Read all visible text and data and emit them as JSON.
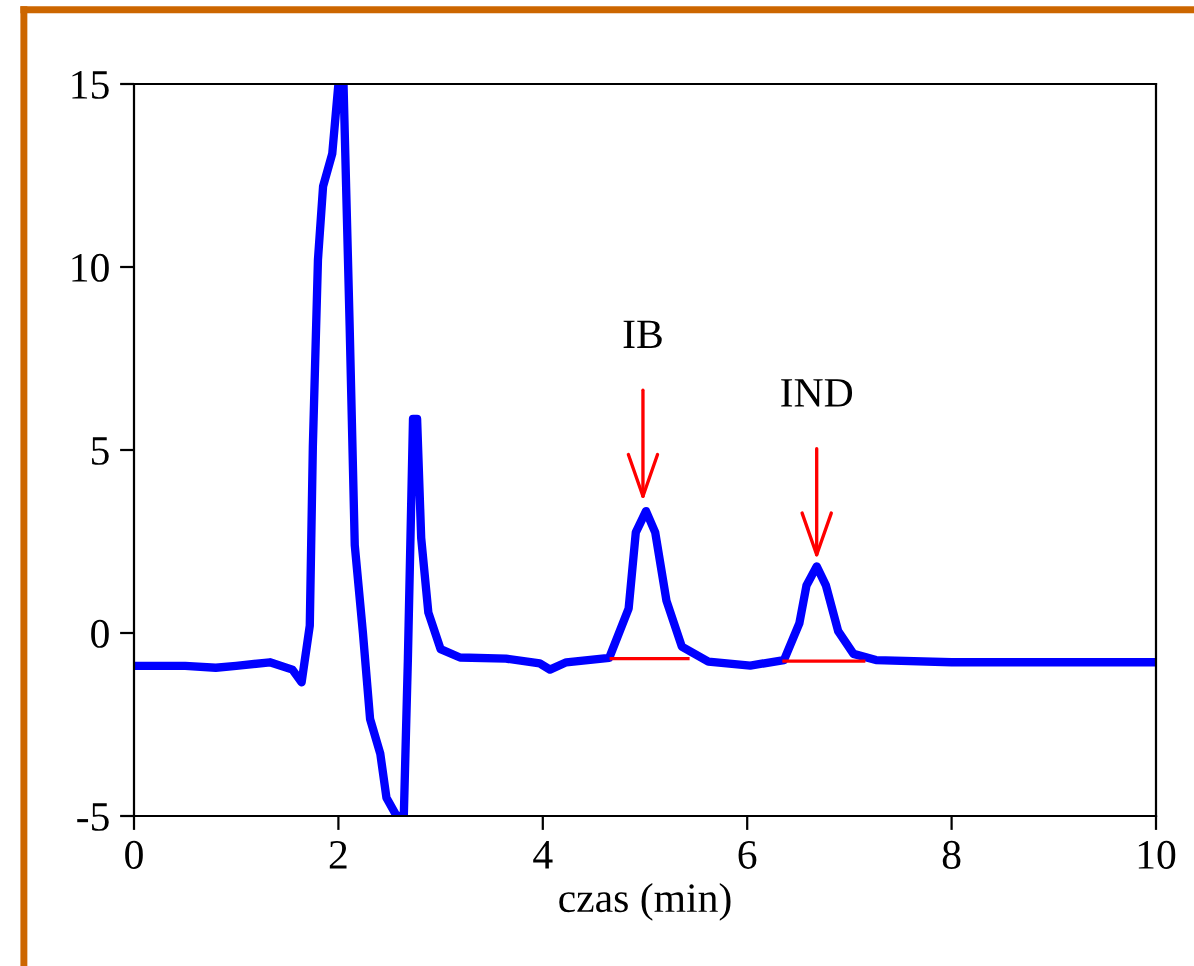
{
  "chart_data": {
    "type": "line",
    "xlabel": "czas (min)",
    "xlim": [
      0,
      10
    ],
    "ylim": [
      -5,
      15
    ],
    "xticks": [
      0,
      2,
      4,
      6,
      8,
      10
    ],
    "yticks": [
      -5,
      0,
      5,
      10,
      15
    ],
    "grid": false,
    "series": [
      {
        "color": "#0000ff",
        "x": [
          0,
          0.5,
          0.8,
          1.0,
          1.33,
          1.55,
          1.64,
          1.72,
          1.75,
          1.8,
          1.85,
          1.94,
          2.0,
          2.05,
          2.11,
          2.16,
          2.24,
          2.31,
          2.41,
          2.47,
          2.57,
          2.64,
          2.68,
          2.73,
          2.77,
          2.81,
          2.88,
          3.0,
          3.19,
          3.64,
          3.97,
          4.07,
          4.23,
          4.65,
          4.84,
          4.91,
          5.01,
          5.1,
          5.21,
          5.36,
          5.62,
          6.03,
          6.36,
          6.51,
          6.58,
          6.68,
          6.77,
          6.89,
          7.04,
          7.26,
          8.0,
          10
        ],
        "values": [
          -0.9,
          -0.9,
          -0.95,
          -0.9,
          -0.8,
          -1.0,
          -1.35,
          0.2,
          5.1,
          10.2,
          12.2,
          13.1,
          15,
          15,
          8.4,
          2.4,
          0,
          -2.35,
          -3.3,
          -4.5,
          -5,
          -5,
          -0.7,
          5.85,
          5.85,
          2.6,
          0.56,
          -0.44,
          -0.67,
          -0.7,
          -0.83,
          -1.0,
          -0.8,
          -0.68,
          0.67,
          2.75,
          3.33,
          2.75,
          0.88,
          -0.37,
          -0.78,
          -0.89,
          -0.74,
          0.26,
          1.3,
          1.82,
          1.3,
          0.05,
          -0.57,
          -0.74,
          -0.8,
          -0.8
        ]
      },
      {
        "color": "#ff0000",
        "x": [
          4.67,
          5.42
        ],
        "values": [
          -0.7,
          -0.7
        ]
      },
      {
        "color": "#ff0000",
        "x": [
          6.36,
          7.14
        ],
        "values": [
          -0.77,
          -0.77
        ]
      }
    ],
    "annotations": [
      {
        "text": "IB",
        "x": 4.98,
        "y": 3.6
      },
      {
        "text": "IND",
        "x": 6.68,
        "y": 2.0
      }
    ]
  }
}
